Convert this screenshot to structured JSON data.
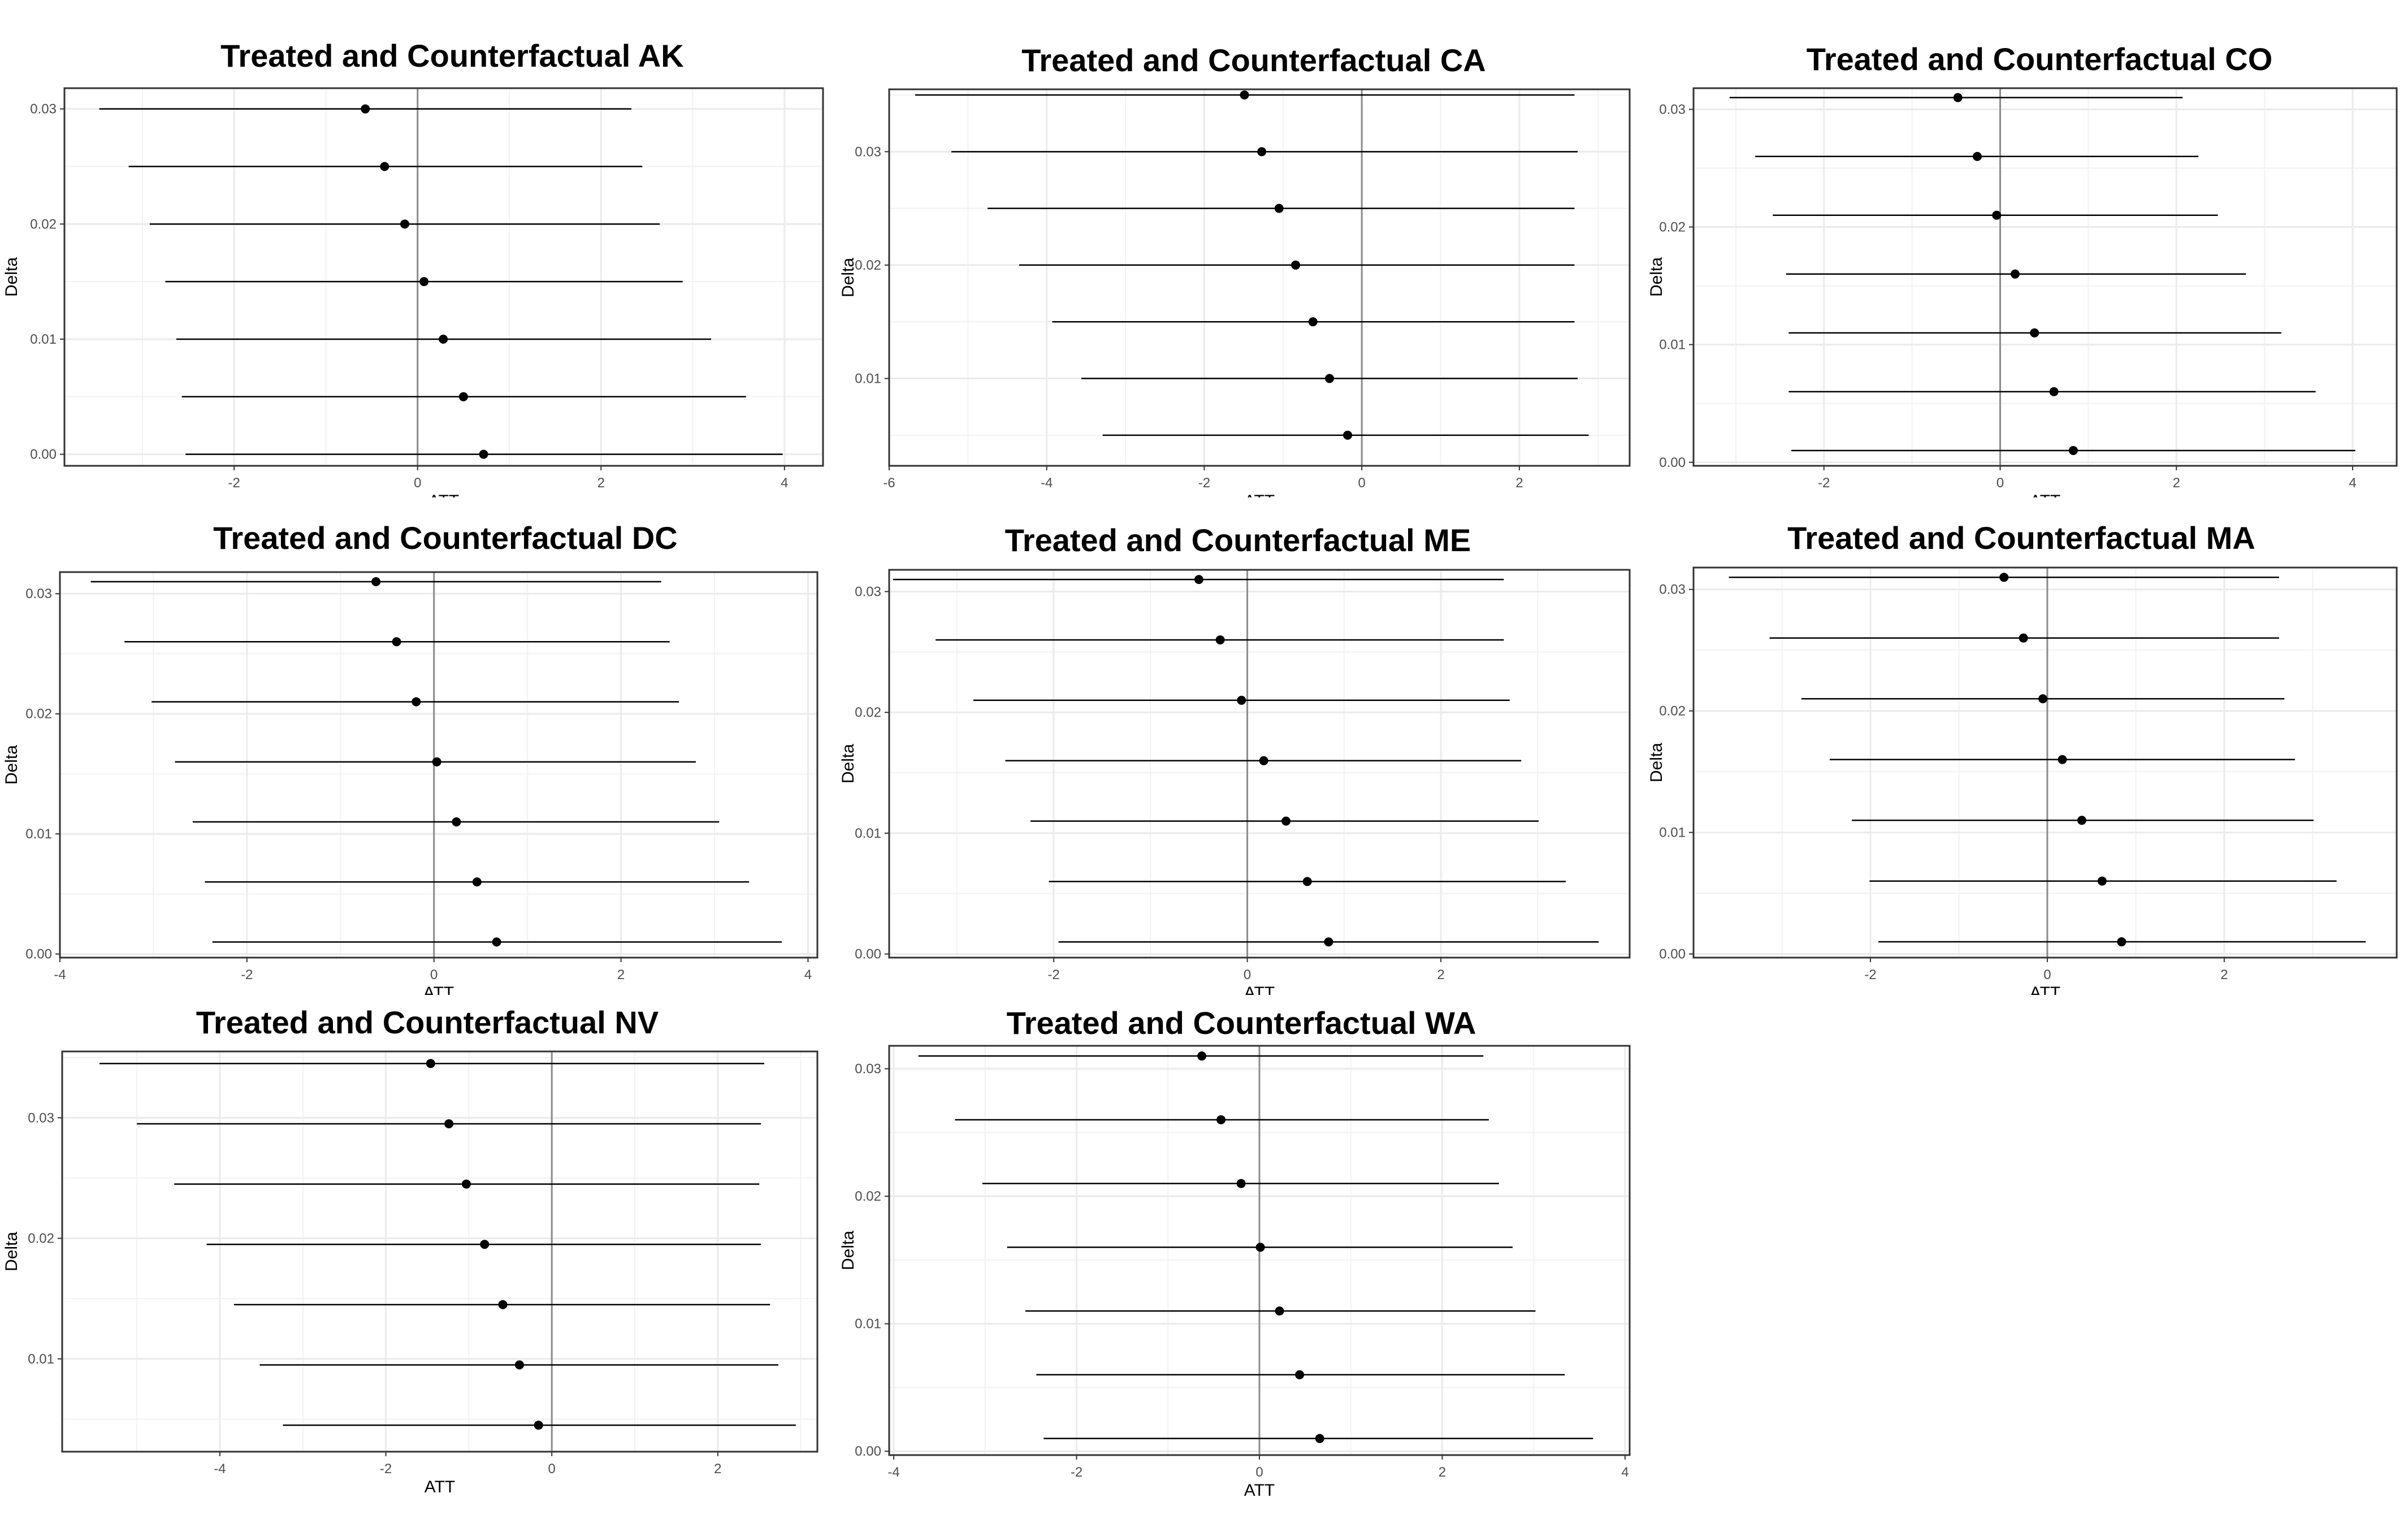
{
  "chart_data": [
    {
      "type": "scatter",
      "title": "Treated and Counterfactual AK",
      "xlabel": "ATT",
      "ylabel": "Delta",
      "xlim": [
        -3.85,
        4.42
      ],
      "ylim": [
        -0.001,
        0.0318
      ],
      "xticks": [
        -2,
        0,
        2,
        4
      ],
      "yticks": [
        0.0,
        0.01,
        0.02,
        0.03
      ],
      "ytick_labels": [
        "0.00",
        "0.01",
        "0.02",
        "0.03"
      ],
      "reference_line_x": 0,
      "grid": true,
      "series": [
        {
          "delta": [
            0.0,
            0.005,
            0.01,
            0.015,
            0.02,
            0.025,
            0.03
          ],
          "att": [
            0.72,
            0.5,
            0.28,
            0.07,
            -0.14,
            -0.36,
            -0.57
          ],
          "lower": [
            -2.53,
            -2.57,
            -2.63,
            -2.75,
            -2.92,
            -3.15,
            -3.47
          ],
          "upper": [
            3.98,
            3.58,
            3.2,
            2.89,
            2.64,
            2.45,
            2.33
          ]
        }
      ]
    },
    {
      "type": "scatter",
      "title": "Treated and Counterfactual CA",
      "xlabel": "ATT",
      "ylabel": "Delta",
      "xlim": [
        -6.0,
        3.4
      ],
      "ylim": [
        0.0023,
        0.0355
      ],
      "xticks": [
        -6,
        -4,
        -2,
        0,
        2
      ],
      "yticks": [
        0.01,
        0.02,
        0.03
      ],
      "ytick_labels": [
        "0.01",
        "0.02",
        "0.03"
      ],
      "reference_line_x": 0,
      "grid": true,
      "series": [
        {
          "delta": [
            0.005,
            0.01,
            0.015,
            0.02,
            0.025,
            0.03,
            0.035
          ],
          "att": [
            -0.18,
            -0.41,
            -0.62,
            -0.84,
            -1.05,
            -1.27,
            -1.49
          ],
          "lower": [
            -3.29,
            -3.56,
            -3.93,
            -4.35,
            -4.75,
            -5.21,
            -5.67
          ],
          "upper": [
            2.88,
            2.74,
            2.7,
            2.7,
            2.7,
            2.74,
            2.7
          ]
        }
      ]
    },
    {
      "type": "scatter",
      "title": "Treated and Counterfactual CO",
      "xlabel": "ATT",
      "ylabel": "Delta",
      "xlim": [
        -3.48,
        4.5
      ],
      "ylim": [
        -0.0003,
        0.0318
      ],
      "xticks": [
        -2,
        0,
        2,
        4
      ],
      "yticks": [
        0.0,
        0.01,
        0.02,
        0.03
      ],
      "ytick_labels": [
        "0.00",
        "0.01",
        "0.02",
        "0.03"
      ],
      "reference_line_x": 0,
      "grid": true,
      "series": [
        {
          "delta": [
            0.001,
            0.006,
            0.011,
            0.016,
            0.021,
            0.026,
            0.031
          ],
          "att": [
            0.83,
            0.61,
            0.39,
            0.17,
            -0.04,
            -0.26,
            -0.48
          ],
          "lower": [
            -2.37,
            -2.4,
            -2.4,
            -2.43,
            -2.58,
            -2.78,
            -3.07
          ],
          "upper": [
            4.03,
            3.58,
            3.19,
            2.79,
            2.47,
            2.25,
            2.07
          ]
        }
      ]
    },
    {
      "type": "scatter",
      "title": "Treated and Counterfactual DC",
      "xlabel": "ATT",
      "ylabel": "Delta",
      "xlim": [
        -4.0,
        4.1
      ],
      "ylim": [
        -0.0003,
        0.0318
      ],
      "xticks": [
        -4,
        -2,
        0,
        2,
        4
      ],
      "yticks": [
        0.0,
        0.01,
        0.02,
        0.03
      ],
      "ytick_labels": [
        "0.00",
        "0.01",
        "0.02",
        "0.03"
      ],
      "reference_line_x": 0,
      "grid": true,
      "series": [
        {
          "delta": [
            0.001,
            0.006,
            0.011,
            0.016,
            0.021,
            0.026,
            0.031
          ],
          "att": [
            0.67,
            0.46,
            0.24,
            0.03,
            -0.19,
            -0.4,
            -0.62
          ],
          "lower": [
            -2.37,
            -2.45,
            -2.58,
            -2.77,
            -3.02,
            -3.31,
            -3.67
          ],
          "upper": [
            3.72,
            3.37,
            3.05,
            2.8,
            2.62,
            2.52,
            2.43
          ]
        }
      ]
    },
    {
      "type": "scatter",
      "title": "Treated and Counterfactual ME",
      "xlabel": "ATT",
      "ylabel": "Delta",
      "xlim": [
        -3.7,
        3.95
      ],
      "ylim": [
        -0.0003,
        0.0318
      ],
      "xticks": [
        -2,
        0,
        2
      ],
      "yticks": [
        0.0,
        0.01,
        0.02,
        0.03
      ],
      "ytick_labels": [
        "0.00",
        "0.01",
        "0.02",
        "0.03"
      ],
      "reference_line_x": 0,
      "grid": true,
      "series": [
        {
          "delta": [
            0.001,
            0.006,
            0.011,
            0.016,
            0.021,
            0.026,
            0.031
          ],
          "att": [
            0.84,
            0.62,
            0.4,
            0.17,
            -0.06,
            -0.28,
            -0.5
          ],
          "lower": [
            -1.95,
            -2.05,
            -2.24,
            -2.5,
            -2.83,
            -3.22,
            -3.66
          ],
          "upper": [
            3.63,
            3.29,
            3.01,
            2.83,
            2.71,
            2.65,
            2.65
          ]
        }
      ]
    },
    {
      "type": "scatter",
      "title": "Treated and Counterfactual MA",
      "xlabel": "ATT",
      "ylabel": "Delta",
      "xlim": [
        -4.0,
        3.95
      ],
      "ylim": [
        -0.0003,
        0.0318
      ],
      "xticks": [
        -2,
        0,
        2
      ],
      "yticks": [
        0.0,
        0.01,
        0.02,
        0.03
      ],
      "ytick_labels": [
        "0.00",
        "0.01",
        "0.02",
        "0.03"
      ],
      "reference_line_x": 0,
      "grid": true,
      "series": [
        {
          "delta": [
            0.001,
            0.006,
            0.011,
            0.016,
            0.021,
            0.026,
            0.031
          ],
          "att": [
            0.84,
            0.62,
            0.39,
            0.17,
            -0.05,
            -0.27,
            -0.49
          ],
          "lower": [
            -1.91,
            -2.01,
            -2.21,
            -2.46,
            -2.78,
            -3.14,
            -3.6
          ],
          "upper": [
            3.6,
            3.27,
            3.01,
            2.8,
            2.68,
            2.62,
            2.62
          ]
        }
      ]
    },
    {
      "type": "scatter",
      "title": "Treated and Counterfactual NV",
      "xlabel": "ATT",
      "ylabel": "Delta",
      "xlim": [
        -5.9,
        3.2
      ],
      "ylim": [
        0.0023,
        0.0355
      ],
      "xticks": [
        -4,
        -2,
        0,
        2
      ],
      "yticks": [
        0.01,
        0.02,
        0.03
      ],
      "ytick_labels": [
        "0.01",
        "0.02",
        "0.03"
      ],
      "reference_line_x": 0,
      "grid": true,
      "series": [
        {
          "delta": [
            0.0045,
            0.0095,
            0.0145,
            0.0195,
            0.0245,
            0.0295,
            0.0345
          ],
          "att": [
            -0.16,
            -0.39,
            -0.59,
            -0.81,
            -1.03,
            -1.24,
            -1.46
          ],
          "lower": [
            -3.24,
            -3.52,
            -3.83,
            -4.16,
            -4.55,
            -5.0,
            -5.45
          ],
          "upper": [
            2.94,
            2.73,
            2.63,
            2.52,
            2.5,
            2.52,
            2.56
          ]
        }
      ]
    },
    {
      "type": "scatter",
      "title": "Treated and Counterfactual WA",
      "xlabel": "ATT",
      "ylabel": "Delta",
      "xlim": [
        -4.05,
        4.05
      ],
      "ylim": [
        -0.0003,
        0.0318
      ],
      "xticks": [
        -4,
        -2,
        0,
        2,
        4
      ],
      "yticks": [
        0.0,
        0.01,
        0.02,
        0.03
      ],
      "ytick_labels": [
        "0.00",
        "0.01",
        "0.02",
        "0.03"
      ],
      "reference_line_x": 0,
      "grid": true,
      "series": [
        {
          "delta": [
            0.001,
            0.006,
            0.011,
            0.016,
            0.021,
            0.026,
            0.031
          ],
          "att": [
            0.66,
            0.44,
            0.22,
            0.01,
            -0.2,
            -0.42,
            -0.63
          ],
          "lower": [
            -2.36,
            -2.44,
            -2.56,
            -2.76,
            -3.03,
            -3.33,
            -3.73
          ],
          "upper": [
            3.65,
            3.34,
            3.02,
            2.77,
            2.62,
            2.51,
            2.45
          ]
        }
      ]
    }
  ]
}
